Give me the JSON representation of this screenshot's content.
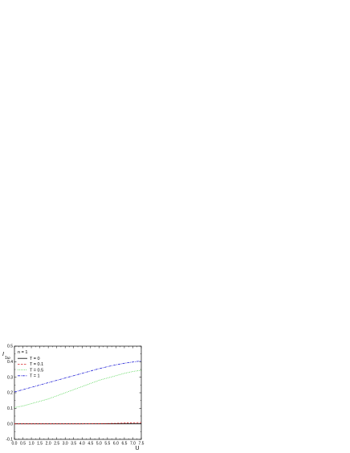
{
  "chart_data": {
    "type": "line",
    "xlabel": "U",
    "ylabel_main": "I",
    "ylabel_sub": "1ω",
    "xlim": [
      0.0,
      7.5
    ],
    "ylim": [
      -0.1,
      0.5
    ],
    "xticks": [
      "0.0",
      "0.5",
      "1.0",
      "1.5",
      "2.0",
      "2.5",
      "3.0",
      "3.5",
      "4.0",
      "4.5",
      "5.0",
      "5.5",
      "6.0",
      "6.5",
      "7.0",
      "7.5"
    ],
    "yticks": [
      "-0.1",
      "0.0",
      "0.1",
      "0.2",
      "0.3",
      "0.4",
      "0.5"
    ],
    "legend_title": "n = 1",
    "legend_position": "top-left",
    "series": [
      {
        "name": "T = 0",
        "color": "#000000",
        "dash": "",
        "x": [
          0,
          7.5
        ],
        "y": [
          0.0,
          0.0
        ]
      },
      {
        "name": "T = 0.1",
        "color": "#d62728",
        "dash": "2.5,1.5",
        "x": [
          0,
          1,
          2,
          3,
          4,
          5,
          6,
          6.5,
          7,
          7.5
        ],
        "y": [
          0.0,
          0.0,
          0.0,
          0.0,
          0.0,
          0.001,
          0.003,
          0.005,
          0.007,
          0.008
        ]
      },
      {
        "name": "T = 0.5",
        "color": "#33cc33",
        "dash": "0.8,1.2",
        "x": [
          0,
          0.5,
          1,
          1.5,
          2,
          2.5,
          3,
          3.5,
          4,
          4.5,
          5,
          5.5,
          6,
          6.5,
          7,
          7.5
        ],
        "y": [
          0.105,
          0.115,
          0.13,
          0.145,
          0.16,
          0.18,
          0.2,
          0.22,
          0.24,
          0.26,
          0.28,
          0.295,
          0.31,
          0.325,
          0.337,
          0.345
        ]
      },
      {
        "name": "T = 1",
        "color": "#1f1fd6",
        "dash": "3,1,0.8,1",
        "x": [
          0,
          0.5,
          1,
          1.5,
          2,
          2.5,
          3,
          3.5,
          4,
          4.5,
          5,
          5.5,
          6,
          6.5,
          7,
          7.5
        ],
        "y": [
          0.205,
          0.22,
          0.235,
          0.25,
          0.265,
          0.28,
          0.295,
          0.31,
          0.325,
          0.34,
          0.355,
          0.368,
          0.38,
          0.39,
          0.398,
          0.405
        ]
      }
    ],
    "grid": false
  }
}
